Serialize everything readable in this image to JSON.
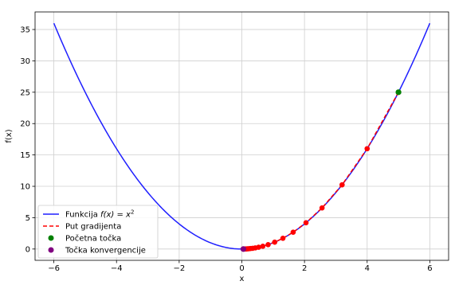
{
  "chart_data": {
    "type": "line",
    "title": "",
    "xlabel": "x",
    "ylabel": "f(x)",
    "xlim": [
      -6.6,
      6.6
    ],
    "ylim": [
      -1.8,
      37.8
    ],
    "grid": true,
    "legend_position": "bottom-left",
    "x_ticks": [
      -6,
      -4,
      -2,
      0,
      2,
      4,
      6
    ],
    "x_tick_labels": [
      "−6",
      "−4",
      "−2",
      "0",
      "2",
      "4",
      "6"
    ],
    "y_ticks": [
      0,
      5,
      10,
      15,
      20,
      25,
      30,
      35
    ],
    "y_tick_labels": [
      "0",
      "5",
      "10",
      "15",
      "20",
      "25",
      "30",
      "35"
    ],
    "series": [
      {
        "name": "Funkcija f(x) = x²",
        "legend_main": "Funkcija ",
        "legend_math": "f(x) = x",
        "legend_sup": "2",
        "kind": "line",
        "style": "solid",
        "color": "#1f1fff",
        "function": "x^2",
        "x_range": [
          -6,
          6
        ]
      },
      {
        "name": "Put gradijenta",
        "kind": "line+markers",
        "style": "dashed",
        "color": "#ff0000",
        "marker_color": "#ff0000",
        "x": [
          5.0,
          4.0,
          3.2,
          2.56,
          2.048,
          1.638,
          1.311,
          1.049,
          0.839,
          0.671,
          0.537,
          0.429,
          0.344,
          0.275,
          0.22,
          0.176,
          0.141,
          0.113,
          0.09,
          0.072,
          0.058,
          0.046
        ],
        "y": [
          25.0,
          16.0,
          10.24,
          6.554,
          4.194,
          2.684,
          1.718,
          1.1,
          0.704,
          0.45,
          0.288,
          0.184,
          0.118,
          0.076,
          0.048,
          0.031,
          0.02,
          0.013,
          0.008,
          0.005,
          0.003,
          0.002
        ]
      },
      {
        "name": "Početna točka",
        "kind": "scatter",
        "color": "#008000",
        "x": [
          5.0
        ],
        "y": [
          25.0
        ]
      },
      {
        "name": "Točka konvergencije",
        "kind": "scatter",
        "color": "#800080",
        "x": [
          0.05
        ],
        "y": [
          0.0
        ]
      }
    ]
  }
}
